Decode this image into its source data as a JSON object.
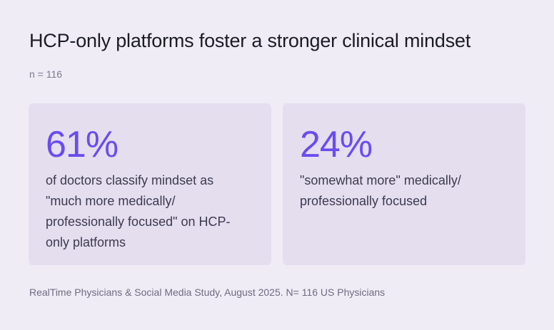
{
  "header": {
    "title": "HCP-only platforms foster a stronger clinical mindset",
    "sample": "n = 116"
  },
  "chart_data": {
    "type": "table",
    "title": "HCP-only platforms foster a stronger clinical mindset",
    "subtitle": "n = 116",
    "stats": [
      {
        "value": "61%",
        "number": 61,
        "description": "of doctors classify mindset as \"much more medically/ professionally focused\" on HCP-only platforms"
      },
      {
        "value": "24%",
        "number": 24,
        "description": "\"somewhat more\" medically/ professionally focused"
      }
    ],
    "source": "RealTime Physicians & Social Media Study, August 2025. N= 116 US Physicians"
  },
  "colors": {
    "accent": "#6a4cf0",
    "card_background": "#e4deef",
    "page_background": "#efecf6"
  }
}
